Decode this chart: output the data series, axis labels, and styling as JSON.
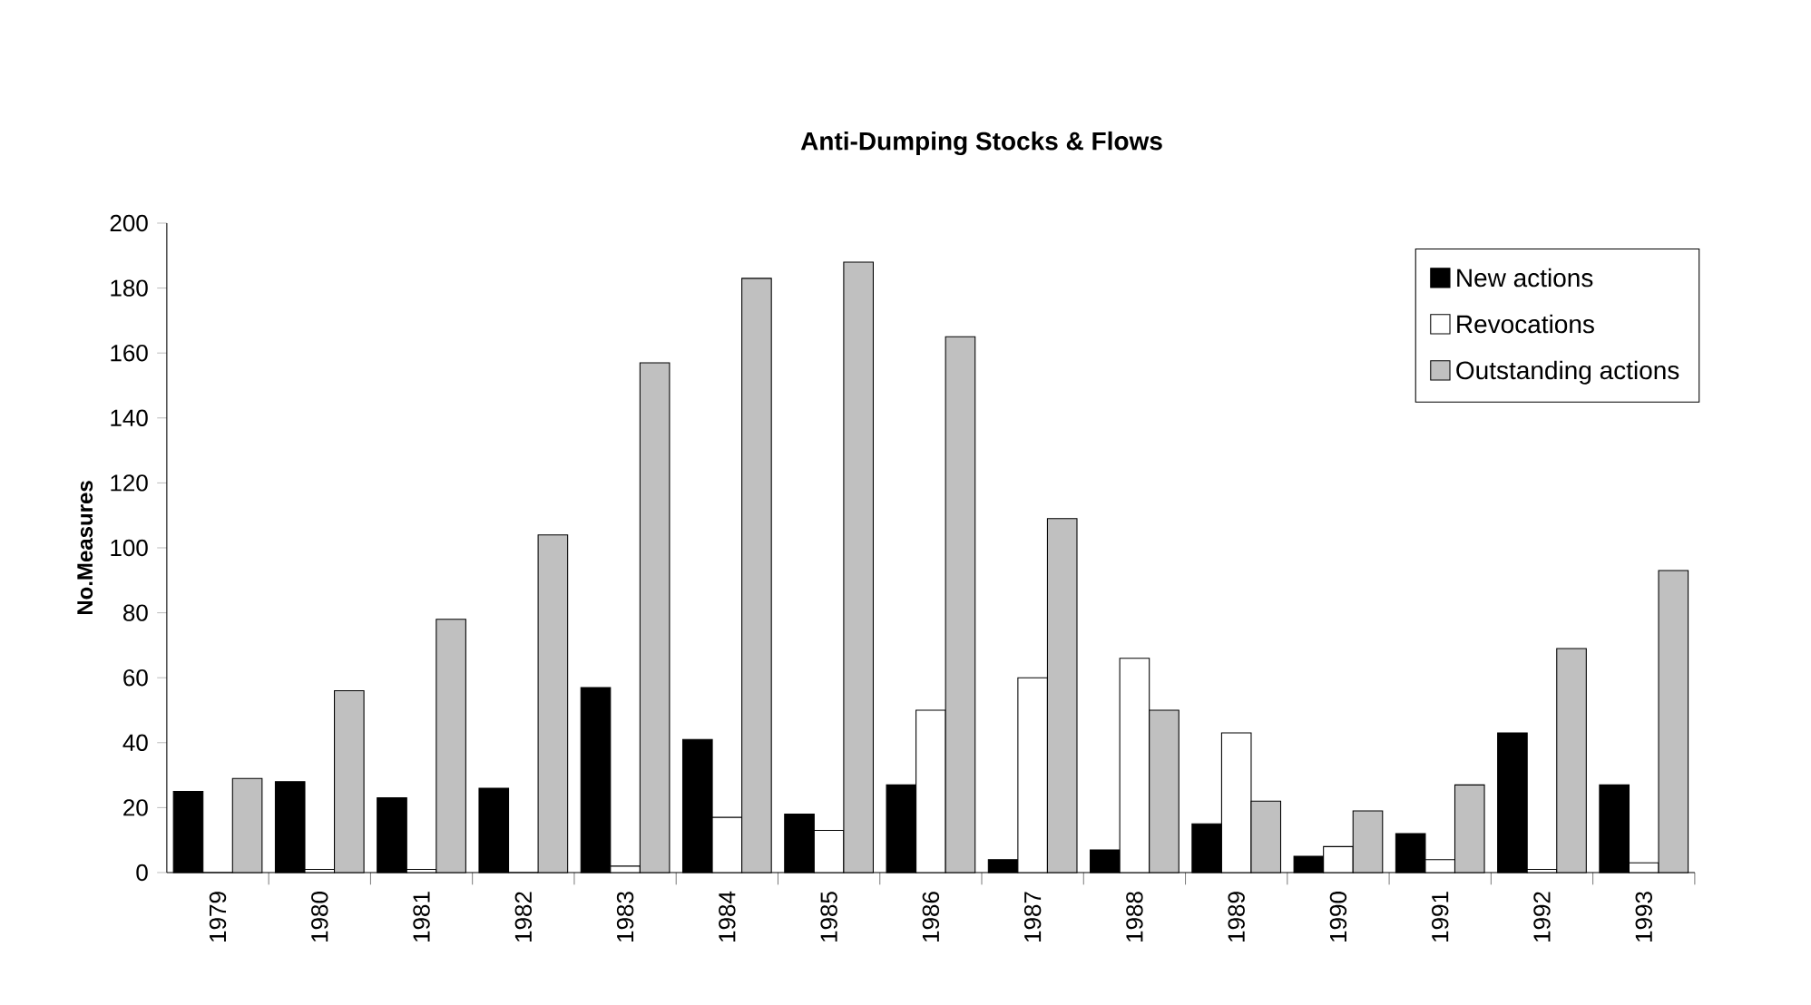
{
  "chart_data": {
    "type": "bar",
    "title": "Anti-Dumping Stocks & Flows",
    "ylabel": "No.Measures",
    "categories": [
      "1979",
      "1980",
      "1981",
      "1982",
      "1983",
      "1984",
      "1985",
      "1986",
      "1987",
      "1988",
      "1989",
      "1990",
      "1991",
      "1992",
      "1993"
    ],
    "series": [
      {
        "name": "New actions",
        "color": "#000000",
        "values": [
          25,
          28,
          23,
          26,
          57,
          41,
          18,
          27,
          4,
          7,
          15,
          5,
          12,
          43,
          27
        ]
      },
      {
        "name": "Revocations",
        "color": "#ffffff",
        "values": [
          0,
          1,
          1,
          0,
          2,
          17,
          13,
          50,
          60,
          66,
          43,
          8,
          4,
          1,
          3
        ]
      },
      {
        "name": "Outstanding actions",
        "color": "#c0c0c0",
        "values": [
          29,
          56,
          78,
          104,
          157,
          183,
          188,
          165,
          109,
          50,
          22,
          19,
          27,
          69,
          93
        ]
      }
    ],
    "ylim": [
      0,
      200
    ],
    "yticks": [
      0,
      20,
      40,
      60,
      80,
      100,
      120,
      140,
      160,
      180,
      200
    ],
    "grid": false,
    "legend": "top right"
  }
}
